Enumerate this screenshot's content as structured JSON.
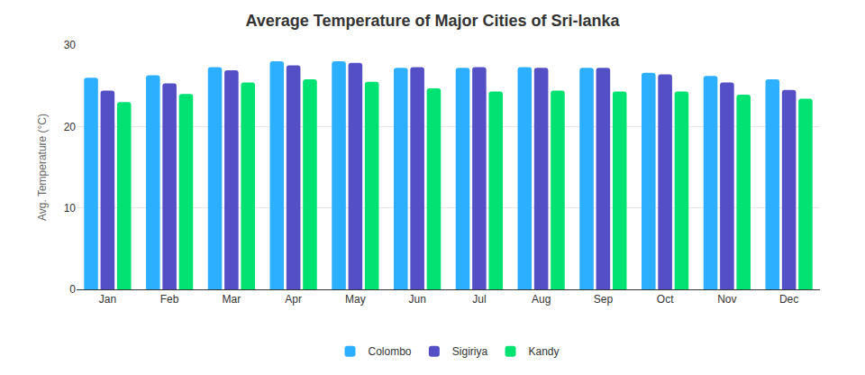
{
  "chart_data": {
    "type": "bar",
    "title": "Average Temperature of Major Cities of Sri-lanka",
    "y_label": "Avg. Temperature (°C)",
    "categories": [
      "Jan",
      "Feb",
      "Mar",
      "Apr",
      "May",
      "Jun",
      "Jul",
      "Aug",
      "Sep",
      "Oct",
      "Nov",
      "Dec"
    ],
    "series": [
      {
        "name": "Colombo",
        "color": "#2caffe",
        "values": [
          26.0,
          26.3,
          27.3,
          28.0,
          28.0,
          27.2,
          27.2,
          27.3,
          27.2,
          26.6,
          26.2,
          25.8
        ]
      },
      {
        "name": "Sigiriya",
        "color": "#544fc5",
        "values": [
          24.4,
          25.3,
          26.9,
          27.5,
          27.8,
          27.3,
          27.3,
          27.2,
          27.2,
          26.4,
          25.4,
          24.5
        ]
      },
      {
        "name": "Kandy",
        "color": "#00e272",
        "values": [
          23.0,
          24.0,
          25.4,
          25.8,
          25.5,
          24.7,
          24.3,
          24.4,
          24.3,
          24.3,
          23.9,
          23.4
        ]
      }
    ],
    "ylim": [
      0,
      30
    ],
    "yticks": [
      0,
      10,
      20,
      30
    ],
    "grid": true,
    "legend": "bottom"
  }
}
